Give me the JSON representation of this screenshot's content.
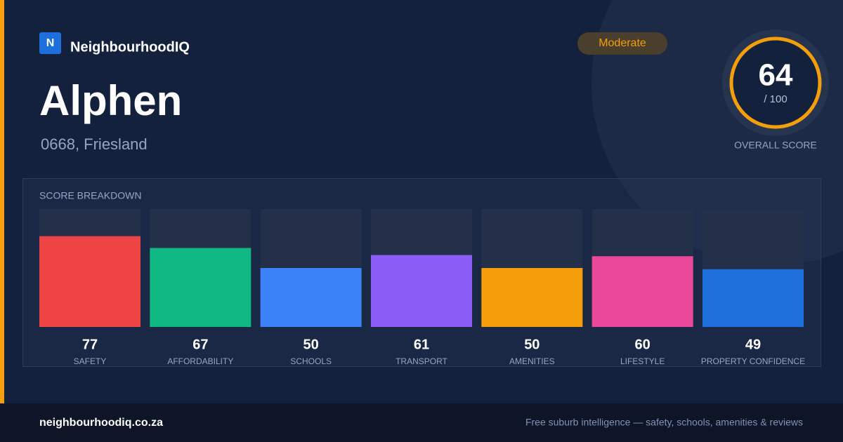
{
  "brand": {
    "logo": "N",
    "name": "NeighbourhoodIQ"
  },
  "place": {
    "name": "Alphen",
    "location": "0668, Friesland"
  },
  "badge": "Moderate",
  "score": {
    "value": "64",
    "out_of": "/ 100",
    "label": "OVERALL SCORE"
  },
  "chart_data": {
    "type": "bar",
    "title": "SCORE BREAKDOWN",
    "categories": [
      "SAFETY",
      "AFFORDABILITY",
      "SCHOOLS",
      "TRANSPORT",
      "AMENITIES",
      "LIFESTYLE",
      "PROPERTY CONFIDENCE"
    ],
    "values": [
      77,
      67,
      50,
      61,
      50,
      60,
      49
    ],
    "colors": [
      "#ef4444",
      "#10b981",
      "#3b82f6",
      "#8b5cf6",
      "#f59e0b",
      "#ec4899",
      "#1d6fdb"
    ],
    "ylim": [
      0,
      100
    ]
  },
  "footer": {
    "site": "neighbourhoodiq.co.za",
    "tagline": "Free suburb intelligence — safety, schools, amenities & reviews"
  }
}
